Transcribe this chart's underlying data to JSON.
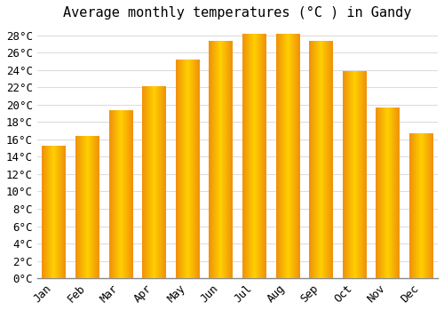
{
  "title": "Average monthly temperatures (°C ) in Gandy",
  "months": [
    "Jan",
    "Feb",
    "Mar",
    "Apr",
    "May",
    "Jun",
    "Jul",
    "Aug",
    "Sep",
    "Oct",
    "Nov",
    "Dec"
  ],
  "values": [
    15.2,
    16.3,
    19.3,
    22.1,
    25.2,
    27.3,
    28.1,
    28.1,
    27.3,
    23.8,
    19.6,
    16.7
  ],
  "bar_color_center": "#FFD000",
  "bar_color_edge": "#F0900A",
  "background_color": "#FFFFFF",
  "grid_color": "#DDDDDD",
  "ylim": [
    0,
    29
  ],
  "ytick_step": 2,
  "title_fontsize": 11,
  "tick_fontsize": 9,
  "font_family": "monospace"
}
